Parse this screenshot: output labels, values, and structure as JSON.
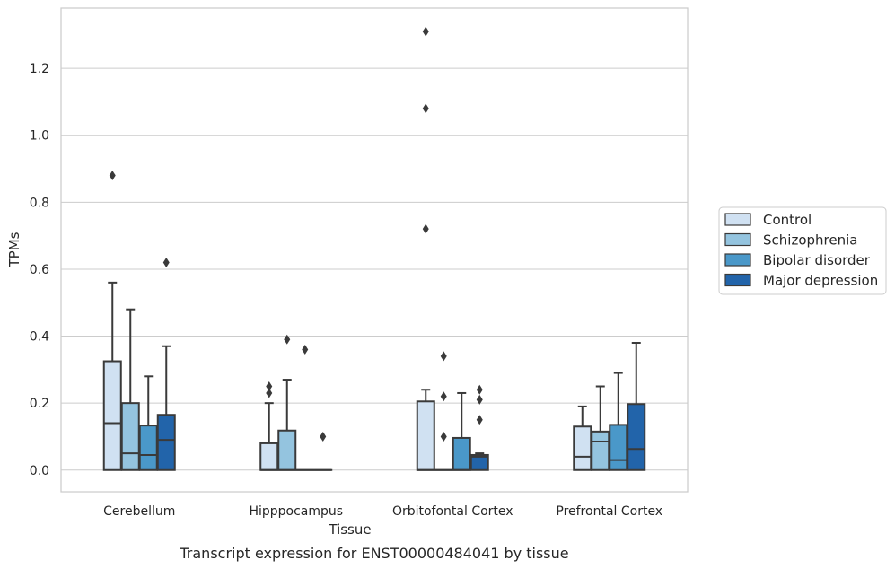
{
  "chart_data": {
    "type": "boxplot",
    "title": "",
    "caption": "Transcript expression for ENST00000484041 by tissue",
    "xlabel": "Tissue",
    "ylabel": "TPMs",
    "ylim": [
      -0.065,
      1.38
    ],
    "yticks": [
      0.0,
      0.2,
      0.4,
      0.6,
      0.8,
      1.0,
      1.2
    ],
    "ytick_labels": [
      "0.0",
      "0.2",
      "0.4",
      "0.6",
      "0.8",
      "1.0",
      "1.2"
    ],
    "grid": "horizontal",
    "legend_position": "right",
    "categories": [
      "Cerebellum",
      "Hipppocampus",
      "Orbitofontal Cortex",
      "Prefrontal Cortex"
    ],
    "colors": {
      "Control": "#d0e1f2",
      "Schizophrenia": "#94c4df",
      "Bipolar disorder": "#4a98c9",
      "Major depression": "#2264aa",
      "box_edge": "#3a3a3a",
      "grid": "#cccccc"
    },
    "series": [
      {
        "name": "Control",
        "boxes": [
          {
            "q1": 0.0,
            "median": 0.14,
            "q3": 0.325,
            "whisker_low": 0.0,
            "whisker_high": 0.56,
            "outliers": [
              0.88
            ]
          },
          {
            "q1": 0.0,
            "median": 0.0,
            "q3": 0.08,
            "whisker_low": 0.0,
            "whisker_high": 0.2,
            "outliers": [
              0.23,
              0.25
            ]
          },
          {
            "q1": 0.0,
            "median": 0.0,
            "q3": 0.205,
            "whisker_low": 0.0,
            "whisker_high": 0.24,
            "outliers": [
              0.72,
              1.08,
              1.31
            ]
          },
          {
            "q1": 0.0,
            "median": 0.04,
            "q3": 0.13,
            "whisker_low": 0.0,
            "whisker_high": 0.19,
            "outliers": []
          }
        ]
      },
      {
        "name": "Schizophrenia",
        "boxes": [
          {
            "q1": 0.0,
            "median": 0.05,
            "q3": 0.2,
            "whisker_low": 0.0,
            "whisker_high": 0.48,
            "outliers": []
          },
          {
            "q1": 0.0,
            "median": 0.0,
            "q3": 0.118,
            "whisker_low": 0.0,
            "whisker_high": 0.27,
            "outliers": [
              0.39
            ]
          },
          {
            "q1": 0.0,
            "median": 0.0,
            "q3": 0.0,
            "whisker_low": 0.0,
            "whisker_high": 0.0,
            "outliers": [
              0.1,
              0.22,
              0.34
            ]
          },
          {
            "q1": 0.0,
            "median": 0.085,
            "q3": 0.115,
            "whisker_low": 0.0,
            "whisker_high": 0.25,
            "outliers": []
          }
        ]
      },
      {
        "name": "Bipolar disorder",
        "boxes": [
          {
            "q1": 0.0,
            "median": 0.045,
            "q3": 0.133,
            "whisker_low": 0.0,
            "whisker_high": 0.28,
            "outliers": []
          },
          {
            "q1": 0.0,
            "median": 0.0,
            "q3": 0.0,
            "whisker_low": 0.0,
            "whisker_high": 0.0,
            "outliers": [
              0.36
            ]
          },
          {
            "q1": 0.0,
            "median": 0.0,
            "q3": 0.096,
            "whisker_low": 0.0,
            "whisker_high": 0.23,
            "outliers": []
          },
          {
            "q1": 0.0,
            "median": 0.03,
            "q3": 0.135,
            "whisker_low": 0.0,
            "whisker_high": 0.29,
            "outliers": []
          }
        ]
      },
      {
        "name": "Major depression",
        "boxes": [
          {
            "q1": 0.0,
            "median": 0.09,
            "q3": 0.165,
            "whisker_low": 0.0,
            "whisker_high": 0.37,
            "outliers": [
              0.62
            ]
          },
          {
            "q1": 0.0,
            "median": 0.0,
            "q3": 0.0,
            "whisker_low": 0.0,
            "whisker_high": 0.0,
            "outliers": [
              0.1
            ]
          },
          {
            "q1": 0.0,
            "median": 0.04,
            "q3": 0.045,
            "whisker_low": 0.0,
            "whisker_high": 0.05,
            "outliers": [
              0.15,
              0.21,
              0.24
            ]
          },
          {
            "q1": 0.0,
            "median": 0.063,
            "q3": 0.197,
            "whisker_low": 0.0,
            "whisker_high": 0.38,
            "outliers": []
          }
        ]
      }
    ]
  }
}
